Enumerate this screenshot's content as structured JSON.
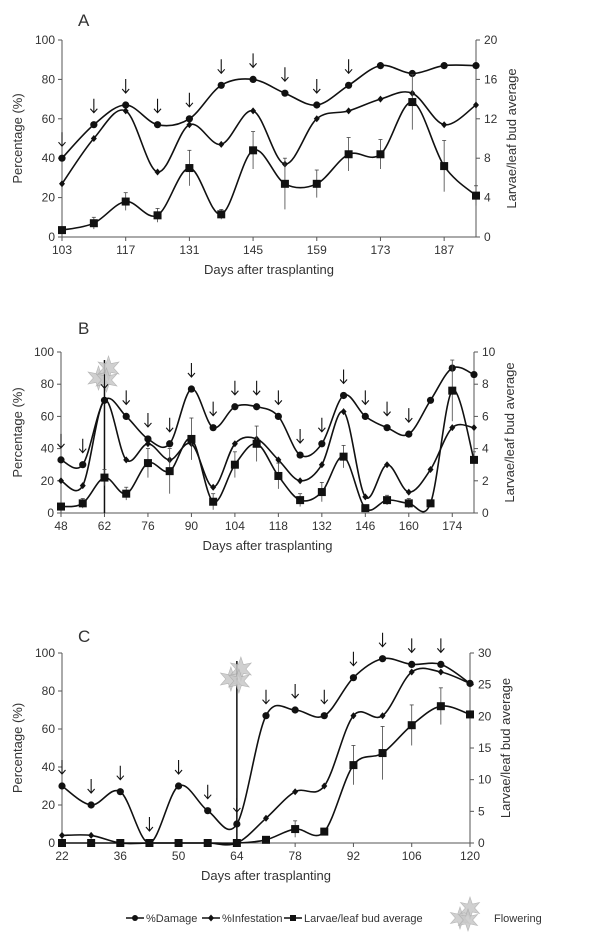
{
  "chart_data": [
    {
      "type": "line",
      "panel": "A",
      "xlabel": "Days after trasplanting",
      "ylabel": "Percentage (%)",
      "y2label": "Larvae/leaf bud average",
      "xticks": [
        103,
        117,
        131,
        145,
        159,
        173,
        187
      ],
      "xlim": [
        103,
        194
      ],
      "ylim": [
        0,
        100
      ],
      "yticks": [
        0,
        20,
        40,
        60,
        80,
        100
      ],
      "y2lim": [
        0,
        20
      ],
      "y2ticks": [
        0,
        4,
        8,
        12,
        16,
        20
      ],
      "x": [
        103,
        110,
        117,
        124,
        131,
        138,
        145,
        152,
        159,
        166,
        173,
        180,
        187,
        194
      ],
      "series": [
        {
          "name": "%Damage",
          "axis": "left",
          "values": [
            40,
            57,
            67,
            57,
            60,
            77,
            80,
            73,
            67,
            77,
            87,
            83,
            87,
            87
          ]
        },
        {
          "name": "%Infestation",
          "axis": "left",
          "values": [
            27,
            50,
            64,
            33,
            57,
            47,
            64,
            37,
            60,
            64,
            70,
            73,
            57,
            67
          ]
        },
        {
          "name": "Larvae/leaf bud average",
          "axis": "right",
          "values": [
            0.7,
            1.4,
            3.6,
            2.2,
            7.0,
            2.3,
            8.8,
            5.4,
            5.4,
            8.4,
            8.4,
            13.7,
            7.2,
            4.2
          ],
          "error": [
            0.3,
            0.6,
            0.9,
            0.7,
            1.8,
            0.5,
            1.9,
            2.6,
            1.4,
            1.7,
            1.5,
            2.8,
            2.6,
            1.0
          ]
        }
      ],
      "application_arrows": [
        103,
        110,
        117,
        124,
        131,
        138,
        145,
        152,
        159,
        166
      ],
      "flowering": null
    },
    {
      "type": "line",
      "panel": "B",
      "xlabel": "Days after trasplanting",
      "ylabel": "Percentage (%)",
      "y2label": "Larvae/leaf bud average",
      "xticks": [
        48,
        62,
        76,
        90,
        104,
        118,
        132,
        146,
        160,
        174
      ],
      "xlim": [
        48,
        181
      ],
      "ylim": [
        0,
        100
      ],
      "yticks": [
        0,
        20,
        40,
        60,
        80,
        100
      ],
      "y2lim": [
        0,
        10
      ],
      "y2ticks": [
        0,
        2,
        4,
        6,
        8,
        10
      ],
      "x": [
        48,
        55,
        62,
        69,
        76,
        83,
        90,
        97,
        104,
        111,
        118,
        125,
        132,
        139,
        146,
        153,
        160,
        167,
        174,
        181
      ],
      "series": [
        {
          "name": "%Damage",
          "axis": "left",
          "values": [
            33,
            30,
            70,
            60,
            46,
            43,
            77,
            53,
            66,
            66,
            60,
            36,
            43,
            73,
            60,
            53,
            49,
            70,
            90,
            86
          ]
        },
        {
          "name": "%Infestation",
          "axis": "left",
          "values": [
            20,
            17,
            70,
            33,
            43,
            33,
            43,
            16,
            43,
            46,
            33,
            20,
            30,
            63,
            10,
            30,
            13,
            27,
            53,
            53
          ]
        },
        {
          "name": "Larvae/leaf bud average",
          "axis": "right",
          "values": [
            0.4,
            0.6,
            2.2,
            1.2,
            3.1,
            2.6,
            4.6,
            0.7,
            3.0,
            4.3,
            2.3,
            0.8,
            1.3,
            3.5,
            0.3,
            0.8,
            0.6,
            0.6,
            7.6,
            3.3
          ],
          "error": [
            0.2,
            0.3,
            0.5,
            0.4,
            0.9,
            1.4,
            1.3,
            0.5,
            0.8,
            1.1,
            0.8,
            0.4,
            0.6,
            0.7,
            0.2,
            0.3,
            0.3,
            0.2,
            1.9,
            0.5
          ]
        }
      ],
      "application_arrows": [
        48,
        55,
        62,
        69,
        76,
        83,
        90,
        97,
        104,
        111,
        118,
        125,
        132,
        139,
        146,
        153,
        160
      ],
      "flowering": 62
    },
    {
      "type": "line",
      "panel": "C",
      "xlabel": "Days after trasplanting",
      "ylabel": "Percentage (%)",
      "y2label": "Larvae/leaf bud average",
      "xticks": [
        22,
        36,
        50,
        64,
        78,
        92,
        106,
        120
      ],
      "xlim": [
        22,
        120
      ],
      "ylim": [
        0,
        100
      ],
      "yticks": [
        0,
        20,
        40,
        60,
        80,
        100
      ],
      "y2lim": [
        0,
        30
      ],
      "y2ticks": [
        0,
        5,
        10,
        15,
        20,
        25,
        30
      ],
      "x": [
        22,
        29,
        36,
        43,
        50,
        57,
        64,
        71,
        78,
        85,
        92,
        99,
        106,
        113,
        120
      ],
      "series": [
        {
          "name": "%Damage",
          "axis": "left",
          "values": [
            30,
            20,
            27,
            0,
            30,
            17,
            10,
            67,
            70,
            67,
            87,
            97,
            94,
            94,
            84
          ]
        },
        {
          "name": "%Infestation",
          "axis": "left",
          "values": [
            4,
            4,
            0,
            0,
            0,
            0,
            0,
            13,
            27,
            30,
            67,
            67,
            90,
            90,
            84
          ]
        },
        {
          "name": "Larvae/leaf bud average",
          "axis": "right",
          "values": [
            0,
            0,
            0,
            0,
            0,
            0,
            0,
            0.5,
            2.2,
            1.8,
            12.3,
            14.2,
            18.6,
            21.6,
            20.3
          ],
          "error": [
            0,
            0,
            0,
            0,
            0,
            0,
            0,
            0.3,
            1.3,
            0.3,
            3.1,
            4.2,
            3.2,
            2.9,
            0
          ]
        }
      ],
      "application_arrows": [
        22,
        29,
        36,
        43,
        50,
        57,
        64,
        71,
        78,
        85,
        92,
        99,
        106,
        113
      ],
      "flowering": 64
    }
  ],
  "legend": {
    "position": "bottom",
    "items": [
      "%Damage",
      "%Infestation",
      "Larvae/leaf bud average",
      "Flowering"
    ]
  },
  "colors": {
    "line": "#111111",
    "axis": "#555555",
    "flower": "#bbbbbb"
  }
}
